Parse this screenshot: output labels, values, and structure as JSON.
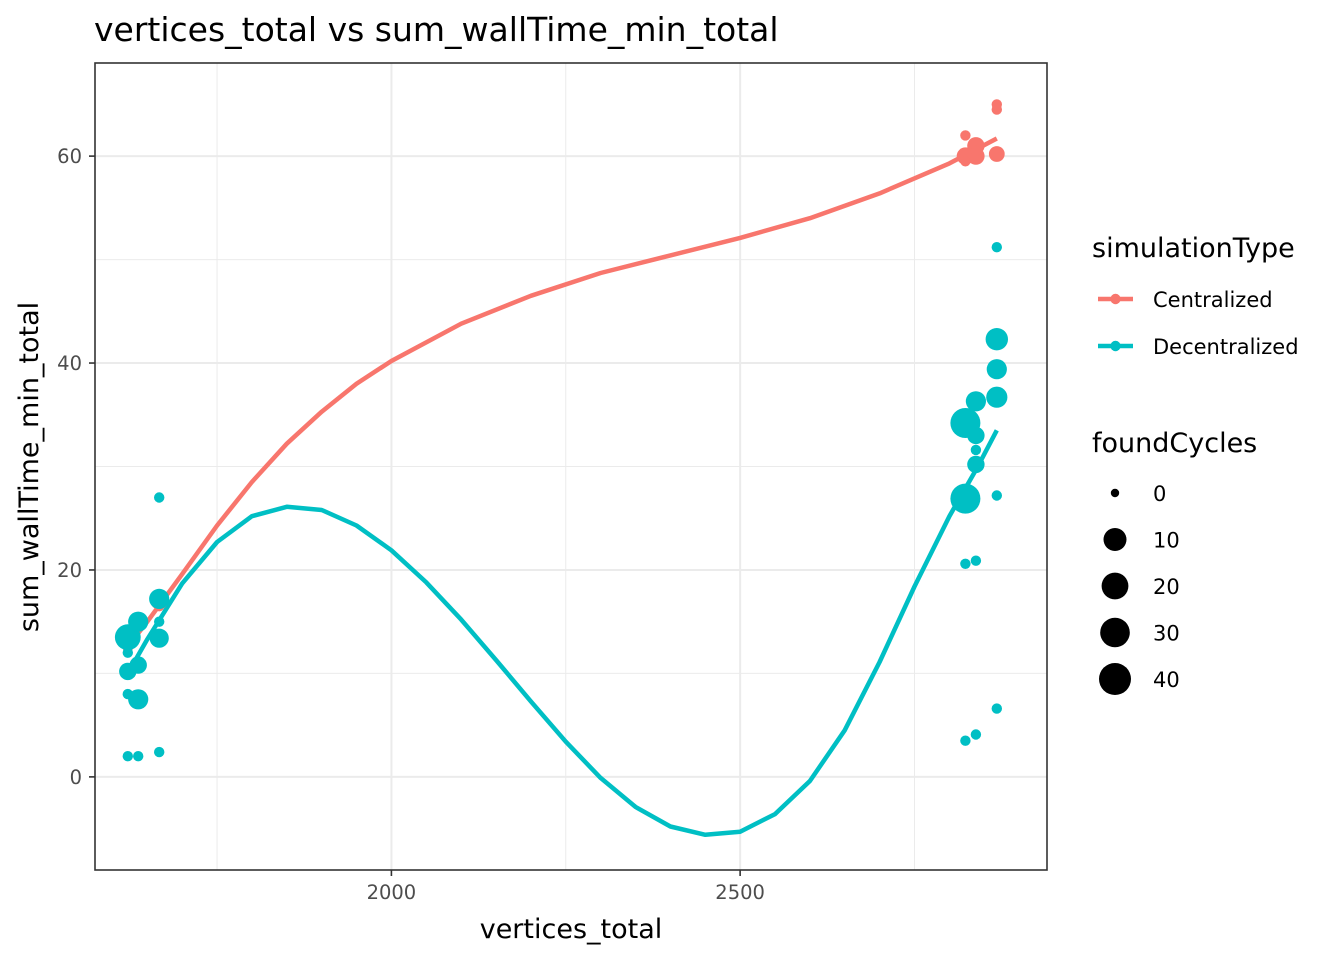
{
  "chart_data": {
    "type": "scatter",
    "title": "vertices_total  vs  sum_wallTime_min_total",
    "xlabel": "vertices_total",
    "ylabel": "sum_wallTime_min_total",
    "xlim": [
      1575,
      2940
    ],
    "ylim": [
      -9,
      69
    ],
    "x_ticks": [
      2000,
      2500
    ],
    "x_tick_labels": [
      "2000",
      "2500"
    ],
    "y_ticks": [
      0,
      20,
      40,
      60
    ],
    "y_tick_labels": [
      "0",
      "20",
      "40",
      "60"
    ],
    "grid": true,
    "color_legend": {
      "title": "simulationType",
      "position": "right",
      "entries": [
        {
          "label": "Centralized",
          "color": "#F8766D"
        },
        {
          "label": "Decentralized",
          "color": "#00BFC4"
        }
      ]
    },
    "size_legend": {
      "title": "foundCycles",
      "entries": [
        {
          "label": "0",
          "value": 0
        },
        {
          "label": "10",
          "value": 10
        },
        {
          "label": "20",
          "value": 20
        },
        {
          "label": "30",
          "value": 30
        },
        {
          "label": "40",
          "value": 40
        }
      ]
    },
    "series": [
      {
        "name": "Centralized",
        "color": "#F8766D",
        "points": [
          {
            "x": 1622,
            "y": 13.0,
            "size": 0
          },
          {
            "x": 1622,
            "y": 12.5,
            "size": 0
          },
          {
            "x": 1637,
            "y": 14.5,
            "size": 0
          },
          {
            "x": 1667,
            "y": 17.0,
            "size": 5
          },
          {
            "x": 1667,
            "y": 16.5,
            "size": 0
          },
          {
            "x": 2823,
            "y": 60.0,
            "size": 5
          },
          {
            "x": 2823,
            "y": 59.5,
            "size": 0
          },
          {
            "x": 2823,
            "y": 62.0,
            "size": 0
          },
          {
            "x": 2838,
            "y": 61.0,
            "size": 5
          },
          {
            "x": 2838,
            "y": 60.5,
            "size": 0
          },
          {
            "x": 2838,
            "y": 60.0,
            "size": 5
          },
          {
            "x": 2868,
            "y": 65.0,
            "size": 0
          },
          {
            "x": 2868,
            "y": 64.5,
            "size": 0
          },
          {
            "x": 2868,
            "y": 60.2,
            "size": 3
          }
        ],
        "smooth": [
          {
            "x": 1622,
            "y": 12.6
          },
          {
            "x": 1650,
            "y": 15.0
          },
          {
            "x": 1700,
            "y": 19.6
          },
          {
            "x": 1750,
            "y": 24.3
          },
          {
            "x": 1800,
            "y": 28.5
          },
          {
            "x": 1850,
            "y": 32.2
          },
          {
            "x": 1900,
            "y": 35.3
          },
          {
            "x": 1950,
            "y": 38.0
          },
          {
            "x": 2000,
            "y": 40.2
          },
          {
            "x": 2100,
            "y": 43.8
          },
          {
            "x": 2200,
            "y": 46.5
          },
          {
            "x": 2300,
            "y": 48.7
          },
          {
            "x": 2400,
            "y": 50.4
          },
          {
            "x": 2500,
            "y": 52.1
          },
          {
            "x": 2600,
            "y": 54.0
          },
          {
            "x": 2700,
            "y": 56.4
          },
          {
            "x": 2800,
            "y": 59.3
          },
          {
            "x": 2868,
            "y": 61.7
          }
        ]
      },
      {
        "name": "Decentralized",
        "color": "#00BFC4",
        "points": [
          {
            "x": 1622,
            "y": 13.5,
            "size": 25
          },
          {
            "x": 1622,
            "y": 10.2,
            "size": 5
          },
          {
            "x": 1622,
            "y": 12.0,
            "size": 0
          },
          {
            "x": 1622,
            "y": 8.0,
            "size": 0
          },
          {
            "x": 1622,
            "y": 2.0,
            "size": 0
          },
          {
            "x": 1637,
            "y": 15.0,
            "size": 10
          },
          {
            "x": 1637,
            "y": 10.8,
            "size": 5
          },
          {
            "x": 1637,
            "y": 7.5,
            "size": 10
          },
          {
            "x": 1637,
            "y": 2.0,
            "size": 0
          },
          {
            "x": 1667,
            "y": 17.2,
            "size": 10
          },
          {
            "x": 1667,
            "y": 13.4,
            "size": 8
          },
          {
            "x": 1667,
            "y": 15.0,
            "size": 0
          },
          {
            "x": 1667,
            "y": 27.0,
            "size": 0
          },
          {
            "x": 1667,
            "y": 2.4,
            "size": 0
          },
          {
            "x": 2823,
            "y": 34.2,
            "size": 40
          },
          {
            "x": 2823,
            "y": 26.9,
            "size": 40
          },
          {
            "x": 2823,
            "y": 20.6,
            "size": 0
          },
          {
            "x": 2823,
            "y": 3.5,
            "size": 0
          },
          {
            "x": 2838,
            "y": 36.3,
            "size": 10
          },
          {
            "x": 2838,
            "y": 33.0,
            "size": 5
          },
          {
            "x": 2838,
            "y": 30.2,
            "size": 5
          },
          {
            "x": 2838,
            "y": 31.6,
            "size": 0
          },
          {
            "x": 2838,
            "y": 20.9,
            "size": 0
          },
          {
            "x": 2838,
            "y": 4.1,
            "size": 0
          },
          {
            "x": 2868,
            "y": 42.3,
            "size": 15
          },
          {
            "x": 2868,
            "y": 39.4,
            "size": 10
          },
          {
            "x": 2868,
            "y": 36.7,
            "size": 12
          },
          {
            "x": 2868,
            "y": 51.2,
            "size": 0
          },
          {
            "x": 2868,
            "y": 27.2,
            "size": 0
          },
          {
            "x": 2868,
            "y": 6.6,
            "size": 0
          }
        ],
        "smooth": [
          {
            "x": 1622,
            "y": 10.0
          },
          {
            "x": 1650,
            "y": 13.3
          },
          {
            "x": 1700,
            "y": 18.7
          },
          {
            "x": 1750,
            "y": 22.7
          },
          {
            "x": 1800,
            "y": 25.2
          },
          {
            "x": 1850,
            "y": 26.1
          },
          {
            "x": 1900,
            "y": 25.8
          },
          {
            "x": 1950,
            "y": 24.3
          },
          {
            "x": 2000,
            "y": 21.9
          },
          {
            "x": 2050,
            "y": 18.8
          },
          {
            "x": 2100,
            "y": 15.2
          },
          {
            "x": 2150,
            "y": 11.3
          },
          {
            "x": 2200,
            "y": 7.3
          },
          {
            "x": 2250,
            "y": 3.4
          },
          {
            "x": 2300,
            "y": -0.1
          },
          {
            "x": 2350,
            "y": -2.9
          },
          {
            "x": 2400,
            "y": -4.8
          },
          {
            "x": 2450,
            "y": -5.6
          },
          {
            "x": 2500,
            "y": -5.3
          },
          {
            "x": 2550,
            "y": -3.6
          },
          {
            "x": 2600,
            "y": -0.4
          },
          {
            "x": 2650,
            "y": 4.5
          },
          {
            "x": 2700,
            "y": 11.1
          },
          {
            "x": 2750,
            "y": 18.4
          },
          {
            "x": 2800,
            "y": 25.2
          },
          {
            "x": 2840,
            "y": 29.9
          },
          {
            "x": 2868,
            "y": 33.5
          }
        ]
      }
    ]
  }
}
